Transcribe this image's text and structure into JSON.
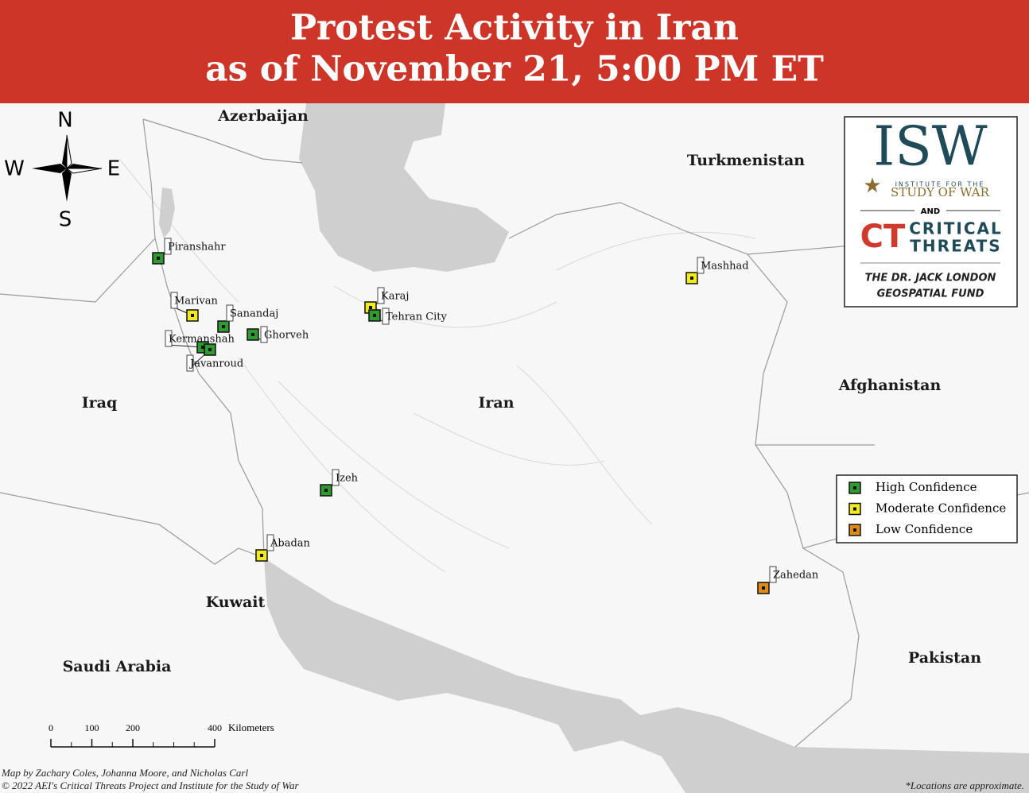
{
  "header": {
    "title_line1": "Protest Activity in Iran",
    "title_line2": "as of November 21, 5:00 PM ET"
  },
  "compass": {
    "north": "N",
    "west": "W",
    "east": "E",
    "south": "S"
  },
  "country_labels": [
    "Azerbaijan",
    "Turkmenistan",
    "Iraq",
    "Iran",
    "Afghanistan",
    "Kuwait",
    "Saudi Arabia",
    "Pakistan"
  ],
  "locations": [
    {
      "name": "Piranshahr",
      "confidence": "High Confidence"
    },
    {
      "name": "Marivan",
      "confidence": "Moderate Confidence"
    },
    {
      "name": "Sanandaj",
      "confidence": "High Confidence"
    },
    {
      "name": "Ghorveh",
      "confidence": "High Confidence"
    },
    {
      "name": "Kermanshah",
      "confidence": "High Confidence"
    },
    {
      "name": "Javanroud",
      "confidence": "High Confidence"
    },
    {
      "name": "Karaj",
      "confidence": "Moderate Confidence"
    },
    {
      "name": "Tehran City",
      "confidence": "High Confidence"
    },
    {
      "name": "Mashhad",
      "confidence": "Moderate Confidence"
    },
    {
      "name": "Izeh",
      "confidence": "High Confidence"
    },
    {
      "name": "Abadan",
      "confidence": "Moderate Confidence"
    },
    {
      "name": "Zahedan",
      "confidence": "Low Confidence"
    }
  ],
  "legend": [
    {
      "label": "High Confidence",
      "color": "#2f9a2f"
    },
    {
      "label": "Moderate Confidence",
      "color": "#f0ea1e"
    },
    {
      "label": "Low Confidence",
      "color": "#de8c17"
    }
  ],
  "logo": {
    "isw": "ISW",
    "institute": "INSTITUTE FOR THE",
    "study": "STUDY OF WAR",
    "and": "AND",
    "ct": "CT",
    "critical": "CRITICAL",
    "threats": "THREATS",
    "fund_line1": "THE DR. JACK LONDON",
    "fund_line2": "GEOSPATIAL FUND"
  },
  "scale_bar": {
    "ticks": [
      0,
      100,
      200,
      400
    ],
    "unit": "Kilometers"
  },
  "credits": {
    "line1": "Map by Zachary Coles, Johanna Moore, and Nicholas Carl",
    "line2": "© 2022 AEI's Critical Threats Project and Institute for the Study of War"
  },
  "footnote": "*Locations are approximate."
}
